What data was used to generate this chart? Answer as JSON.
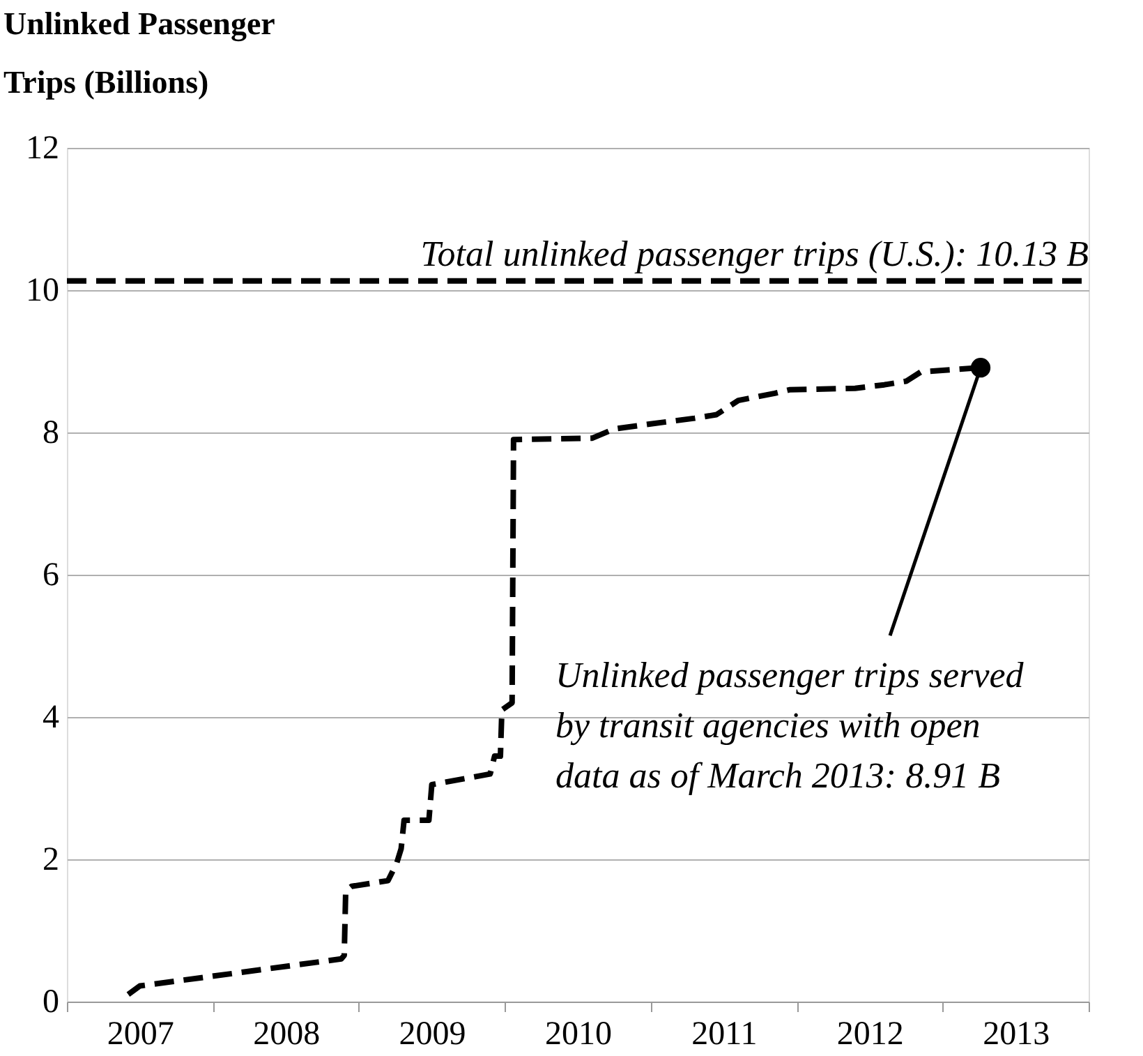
{
  "chart_data": {
    "type": "line",
    "ylabel": "Unlinked Passenger Trips (Billions)",
    "x": [
      2007.42,
      2007.5,
      2008.88,
      2008.9,
      2008.91,
      2008.95,
      2009.2,
      2009.26,
      2009.29,
      2009.31,
      2009.48,
      2009.5,
      2009.9,
      2009.93,
      2009.97,
      2009.98,
      2010.05,
      2010.06,
      2010.6,
      2010.75,
      2011.0,
      2011.3,
      2011.45,
      2011.6,
      2011.85,
      2011.95,
      2012.4,
      2012.6,
      2012.75,
      2012.85,
      2013.26
    ],
    "series": [
      {
        "color": "#000000",
        "values": [
          0.1,
          0.22,
          0.6,
          0.65,
          1.55,
          1.62,
          1.7,
          1.95,
          2.15,
          2.55,
          2.55,
          3.05,
          3.2,
          3.45,
          3.45,
          4.1,
          4.2,
          7.9,
          7.92,
          8.05,
          8.12,
          8.2,
          8.25,
          8.45,
          8.55,
          8.6,
          8.62,
          8.67,
          8.72,
          8.85,
          8.91
        ]
      }
    ],
    "xlim": [
      2007,
      2014
    ],
    "xticks": [
      {
        "value": 2007,
        "label": null
      },
      {
        "value": 2007.5,
        "label": "2007"
      },
      {
        "value": 2008,
        "label": null
      },
      {
        "value": 2008.5,
        "label": "2008"
      },
      {
        "value": 2009,
        "label": null
      },
      {
        "value": 2009.5,
        "label": "2009"
      },
      {
        "value": 2010,
        "label": null
      },
      {
        "value": 2010.5,
        "label": "2010"
      },
      {
        "value": 2011,
        "label": null
      },
      {
        "value": 2011.5,
        "label": "2011"
      },
      {
        "value": 2012,
        "label": null
      },
      {
        "value": 2012.5,
        "label": "2012"
      },
      {
        "value": 2013,
        "label": null
      },
      {
        "value": 2013.5,
        "label": "2013"
      },
      {
        "value": 2014,
        "label": null
      }
    ],
    "ylim": [
      0,
      12
    ],
    "yticks": [
      0,
      2,
      4,
      6,
      8,
      10,
      12
    ],
    "grid": "y",
    "line_style": "dashed",
    "ref_lines": [
      {
        "axis": "y",
        "value": 10.13,
        "label": "Total unlinked passenger trips  (U.S.): 10.13 B",
        "color": "#000000",
        "line_style": "dashed"
      }
    ],
    "annotations": [
      {
        "text": "Unlinked passenger trips served by transit agencies with open data as of March 2013: 8.91 B",
        "x": 2013.26,
        "y": 8.91
      }
    ]
  }
}
